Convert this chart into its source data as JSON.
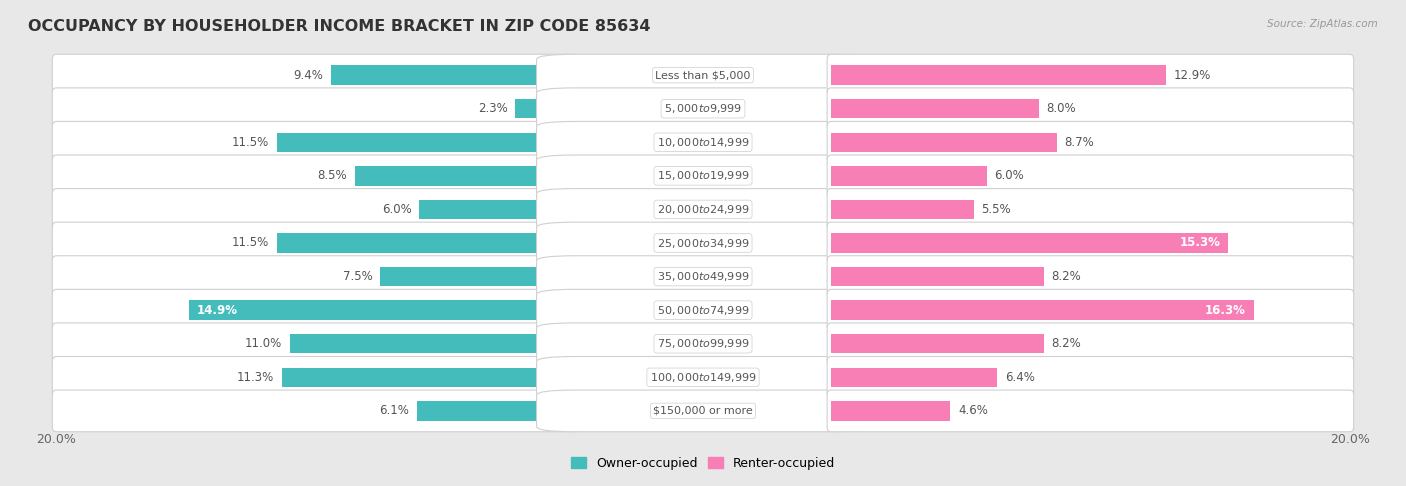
{
  "title": "OCCUPANCY BY HOUSEHOLDER INCOME BRACKET IN ZIP CODE 85634",
  "source": "Source: ZipAtlas.com",
  "categories": [
    "Less than $5,000",
    "$5,000 to $9,999",
    "$10,000 to $14,999",
    "$15,000 to $19,999",
    "$20,000 to $24,999",
    "$25,000 to $34,999",
    "$35,000 to $49,999",
    "$50,000 to $74,999",
    "$75,000 to $99,999",
    "$100,000 to $149,999",
    "$150,000 or more"
  ],
  "owner_values": [
    9.4,
    2.3,
    11.5,
    8.5,
    6.0,
    11.5,
    7.5,
    14.9,
    11.0,
    11.3,
    6.1
  ],
  "renter_values": [
    12.9,
    8.0,
    8.7,
    6.0,
    5.5,
    15.3,
    8.2,
    16.3,
    8.2,
    6.4,
    4.6
  ],
  "owner_color": "#45BCBC",
  "renter_color": "#F87FB5",
  "background_color": "#e8e8e8",
  "bar_bg_color": "#ffffff",
  "max_value": 20.0,
  "title_fontsize": 11.5,
  "label_fontsize": 8.5,
  "category_fontsize": 8.0,
  "owner_inside_threshold": 14.0,
  "renter_inside_threshold": 15.0
}
